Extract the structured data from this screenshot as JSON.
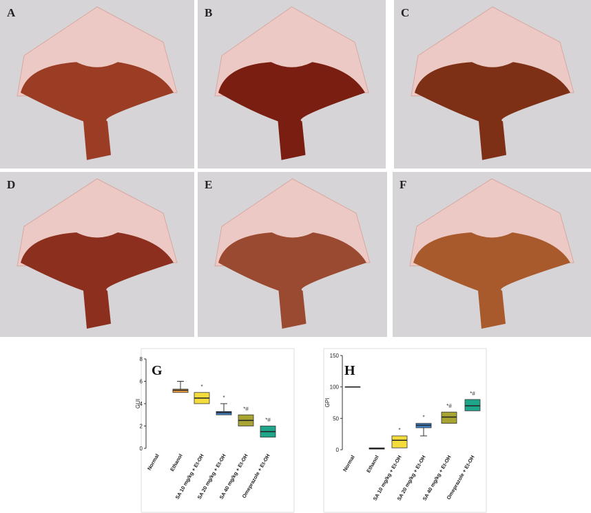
{
  "panels": [
    "A",
    "B",
    "C",
    "D",
    "E",
    "F"
  ],
  "chart_data": [
    {
      "type": "box",
      "title": "G",
      "ylabel": "GUI",
      "categories": [
        "Normal",
        "Ethanol",
        "SA 10 mg/kg + Et-OH",
        "SA 20 mg/kg + Et-OH",
        "SA 40 mg/kg + Et-OH",
        "Omeprazole + Et-OH"
      ],
      "min": [
        null,
        5.0,
        4.0,
        3.0,
        2.0,
        1.0
      ],
      "q1": [
        null,
        5.0,
        4.0,
        3.0,
        2.0,
        1.0
      ],
      "median": [
        null,
        5.2,
        4.5,
        3.2,
        2.5,
        1.5
      ],
      "q3": [
        null,
        5.3,
        5.0,
        3.3,
        3.0,
        2.0
      ],
      "max": [
        null,
        6.0,
        5.0,
        4.0,
        3.0,
        2.0
      ],
      "colors": [
        null,
        "#f2a445",
        "#f4dc3c",
        "#3f7fc4",
        "#a8a434",
        "#1fa58a"
      ],
      "annotations": [
        null,
        null,
        "*",
        "*",
        "*#",
        "*#"
      ],
      "ylim": [
        0,
        8
      ],
      "yticks": [
        0,
        2,
        4,
        6,
        8
      ]
    },
    {
      "type": "box",
      "title": "H",
      "ylabel": "GPI",
      "categories": [
        "Normal",
        "Ethanol",
        "SA 10 mg/kg + Et-OH",
        "SA 20 mg/kg + Et-OH",
        "SA 40 mg/kg + Et-OH",
        "Omeprazole + Et-OH"
      ],
      "min": [
        100,
        1,
        3,
        22,
        42,
        62
      ],
      "q1": [
        100,
        1,
        3,
        35,
        42,
        62
      ],
      "median": [
        100,
        2,
        15,
        39,
        52,
        70
      ],
      "q3": [
        100,
        3,
        22,
        42,
        60,
        80
      ],
      "max": [
        100,
        3,
        22,
        42,
        60,
        80
      ],
      "colors": [
        "#222222",
        "#222222",
        "#f4dc3c",
        "#3f7fc4",
        "#a8a434",
        "#1fa58a"
      ],
      "annotations": [
        null,
        null,
        "*",
        "*",
        "*#",
        "*#"
      ],
      "ylim": [
        0,
        150
      ],
      "yticks": [
        0,
        50,
        100,
        150
      ]
    }
  ]
}
